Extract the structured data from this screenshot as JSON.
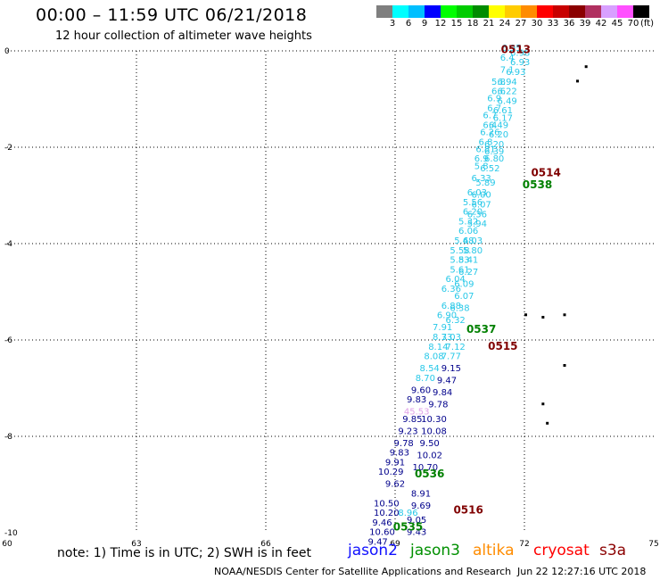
{
  "header": {
    "title": "00:00 – 11:59 UTC 06/21/2018",
    "subtitle": "12 hour collection of altimeter wave heights"
  },
  "colorbar": {
    "colors": [
      "#7f7f7f",
      "#00ffff",
      "#00bfff",
      "#0000ff",
      "#00ff00",
      "#00cc00",
      "#008c00",
      "#ffff00",
      "#ffcc00",
      "#ff8c00",
      "#ff0000",
      "#c80000",
      "#8b0000",
      "#b03060",
      "#d8a0ff",
      "#ff50ff",
      "#000000"
    ],
    "labels": [
      "3",
      "6",
      "9",
      "12",
      "15",
      "18",
      "21",
      "24",
      "27",
      "30",
      "33",
      "36",
      "39",
      "42",
      "45",
      "70"
    ],
    "unit": "(ft)"
  },
  "axes": {
    "x_ticks": [
      "60",
      "63",
      "66",
      "69",
      "72",
      "75"
    ],
    "y_ticks": [
      "0",
      "-2",
      "-4",
      "-6",
      "-8",
      "-10"
    ]
  },
  "map_data": {
    "x_range": [
      60,
      75
    ],
    "y_range": [
      -10,
      0
    ],
    "passes": [
      {
        "label": "0513",
        "satellite": "cryosat",
        "lon": 71.8,
        "lat": -0.05
      },
      {
        "label": "0514",
        "satellite": "cryosat",
        "lon": 72.5,
        "lat": -2.6
      },
      {
        "label": "0538",
        "satellite": "jason3",
        "lon": 72.3,
        "lat": -2.85
      },
      {
        "label": "0537",
        "satellite": "jason3",
        "lon": 71.0,
        "lat": -5.85
      },
      {
        "label": "0515",
        "satellite": "cryosat",
        "lon": 71.5,
        "lat": -6.2
      },
      {
        "label": "0536",
        "satellite": "jason3",
        "lon": 69.8,
        "lat": -8.85
      },
      {
        "label": "0516",
        "satellite": "cryosat",
        "lon": 70.7,
        "lat": -9.6
      },
      {
        "label": "0535",
        "satellite": "jason3",
        "lon": 69.3,
        "lat": -9.95
      }
    ],
    "tracks": [
      {
        "satellite": "s3a",
        "color": "#28c8e8",
        "points": [
          {
            "lon": 71.7,
            "lat": 0.0,
            "v": "6.95"
          },
          {
            "lon": 71.9,
            "lat": -0.1,
            "v": "6.98"
          },
          {
            "lon": 71.6,
            "lat": -0.2,
            "v": "6.4"
          },
          {
            "lon": 71.9,
            "lat": -0.3,
            "v": "6.93"
          },
          {
            "lon": 71.6,
            "lat": -0.45,
            "v": "7.1"
          },
          {
            "lon": 71.8,
            "lat": -0.5,
            "v": "6.93"
          },
          {
            "lon": 71.4,
            "lat": -0.7,
            "v": "5.8"
          },
          {
            "lon": 71.6,
            "lat": -0.7,
            "v": "6.94"
          },
          {
            "lon": 71.4,
            "lat": -0.9,
            "v": "6.6"
          },
          {
            "lon": 71.6,
            "lat": -0.9,
            "v": "6.22"
          },
          {
            "lon": 71.3,
            "lat": -1.05,
            "v": "6.9"
          },
          {
            "lon": 71.6,
            "lat": -1.1,
            "v": "6.49"
          },
          {
            "lon": 71.3,
            "lat": -1.25,
            "v": "6.7"
          },
          {
            "lon": 71.5,
            "lat": -1.3,
            "v": "6.61"
          },
          {
            "lon": 71.2,
            "lat": -1.4,
            "v": "6.7"
          },
          {
            "lon": 71.5,
            "lat": -1.45,
            "v": "6.17"
          },
          {
            "lon": 71.2,
            "lat": -1.6,
            "v": "6.4"
          },
          {
            "lon": 71.4,
            "lat": -1.6,
            "v": "6.49"
          },
          {
            "lon": 71.2,
            "lat": -1.75,
            "v": "6.26"
          },
          {
            "lon": 71.4,
            "lat": -1.8,
            "v": "6.20"
          },
          {
            "lon": 71.1,
            "lat": -1.95,
            "v": "6.8"
          },
          {
            "lon": 71.3,
            "lat": -2.0,
            "v": "6.20"
          },
          {
            "lon": 71.1,
            "lat": -2.1,
            "v": "6.81"
          },
          {
            "lon": 71.3,
            "lat": -2.15,
            "v": "6.39"
          },
          {
            "lon": 71.0,
            "lat": -2.3,
            "v": "6.9"
          },
          {
            "lon": 71.3,
            "lat": -2.3,
            "v": "6.80"
          },
          {
            "lon": 71.0,
            "lat": -2.45,
            "v": "5.8"
          },
          {
            "lon": 71.2,
            "lat": -2.5,
            "v": "6.52"
          },
          {
            "lon": 71.0,
            "lat": -2.7,
            "v": "6.33"
          },
          {
            "lon": 71.1,
            "lat": -2.8,
            "v": "5.89"
          },
          {
            "lon": 70.9,
            "lat": -3.0,
            "v": "6.03"
          },
          {
            "lon": 71.0,
            "lat": -3.05,
            "v": "6.00"
          },
          {
            "lon": 70.8,
            "lat": -3.2,
            "v": "5.56"
          },
          {
            "lon": 71.0,
            "lat": -3.25,
            "v": "6.07"
          },
          {
            "lon": 70.8,
            "lat": -3.4,
            "v": "6.20"
          },
          {
            "lon": 70.9,
            "lat": -3.45,
            "v": "6.36"
          },
          {
            "lon": 70.7,
            "lat": -3.6,
            "v": "5.32"
          },
          {
            "lon": 70.9,
            "lat": -3.65,
            "v": "5.94"
          },
          {
            "lon": 70.7,
            "lat": -3.8,
            "v": "6.06"
          },
          {
            "lon": 70.6,
            "lat": -4.0,
            "v": "5.48"
          },
          {
            "lon": 70.8,
            "lat": -4.0,
            "v": "6.03"
          },
          {
            "lon": 70.5,
            "lat": -4.2,
            "v": "5.58"
          },
          {
            "lon": 70.8,
            "lat": -4.2,
            "v": "5.80"
          },
          {
            "lon": 70.5,
            "lat": -4.4,
            "v": "5.83"
          },
          {
            "lon": 70.7,
            "lat": -4.4,
            "v": "5.41"
          },
          {
            "lon": 70.5,
            "lat": -4.6,
            "v": "5.61"
          },
          {
            "lon": 70.7,
            "lat": -4.65,
            "v": "6.27"
          },
          {
            "lon": 70.4,
            "lat": -4.8,
            "v": "6.04"
          },
          {
            "lon": 70.6,
            "lat": -4.9,
            "v": "6.09"
          },
          {
            "lon": 70.3,
            "lat": -5.0,
            "v": "6.36"
          },
          {
            "lon": 70.6,
            "lat": -5.15,
            "v": "6.07"
          },
          {
            "lon": 70.3,
            "lat": -5.35,
            "v": "6.88"
          },
          {
            "lon": 70.5,
            "lat": -5.4,
            "v": "6.38"
          },
          {
            "lon": 70.2,
            "lat": -5.55,
            "v": "6.90"
          },
          {
            "lon": 70.4,
            "lat": -5.65,
            "v": "6.32"
          },
          {
            "lon": 70.1,
            "lat": -5.8,
            "v": "7.91"
          },
          {
            "lon": 70.1,
            "lat": -6.0,
            "v": "8.33"
          },
          {
            "lon": 70.3,
            "lat": -6.0,
            "v": "7.03"
          },
          {
            "lon": 70.0,
            "lat": -6.2,
            "v": "8.14"
          },
          {
            "lon": 70.4,
            "lat": -6.2,
            "v": "7.12"
          },
          {
            "lon": 69.9,
            "lat": -6.4,
            "v": "8.08"
          },
          {
            "lon": 70.3,
            "lat": -6.4,
            "v": "7.77"
          },
          {
            "lon": 69.8,
            "lat": -6.65,
            "v": "8.54"
          },
          {
            "lon": 69.7,
            "lat": -6.85,
            "v": "8.70"
          },
          {
            "lon": 69.3,
            "lat": -9.65,
            "v": "8.96"
          }
        ]
      },
      {
        "satellite": "jason2",
        "color": "#00008b",
        "points": [
          {
            "lon": 70.3,
            "lat": -6.65,
            "v": "9.15"
          },
          {
            "lon": 70.2,
            "lat": -6.9,
            "v": "9.47"
          },
          {
            "lon": 69.6,
            "lat": -7.1,
            "v": "9.60"
          },
          {
            "lon": 70.1,
            "lat": -7.15,
            "v": "9.84"
          },
          {
            "lon": 69.5,
            "lat": -7.3,
            "v": "9.83"
          },
          {
            "lon": 70.0,
            "lat": -7.4,
            "v": "9.78"
          },
          {
            "lon": 69.4,
            "lat": -7.7,
            "v": "9.85"
          },
          {
            "lon": 69.9,
            "lat": -7.7,
            "v": "10.30"
          },
          {
            "lon": 69.3,
            "lat": -7.95,
            "v": "9.23"
          },
          {
            "lon": 69.9,
            "lat": -7.95,
            "v": "10.08"
          },
          {
            "lon": 69.2,
            "lat": -8.2,
            "v": "9.78"
          },
          {
            "lon": 69.8,
            "lat": -8.2,
            "v": "9.50"
          },
          {
            "lon": 69.1,
            "lat": -8.4,
            "v": "9.83"
          },
          {
            "lon": 69.8,
            "lat": -8.45,
            "v": "10.02"
          },
          {
            "lon": 69.0,
            "lat": -8.6,
            "v": "9.91"
          },
          {
            "lon": 69.7,
            "lat": -8.7,
            "v": "10.70"
          },
          {
            "lon": 68.9,
            "lat": -8.8,
            "v": "10.29"
          },
          {
            "lon": 69.0,
            "lat": -9.05,
            "v": "9.62"
          },
          {
            "lon": 69.6,
            "lat": -9.25,
            "v": "8.91"
          },
          {
            "lon": 68.8,
            "lat": -9.45,
            "v": "10.50"
          },
          {
            "lon": 69.6,
            "lat": -9.5,
            "v": "9.69"
          },
          {
            "lon": 68.8,
            "lat": -9.65,
            "v": "10.20"
          },
          {
            "lon": 69.5,
            "lat": -9.8,
            "v": "9.05"
          },
          {
            "lon": 68.7,
            "lat": -9.85,
            "v": "9.46"
          },
          {
            "lon": 68.7,
            "lat": -10.05,
            "v": "10.60"
          },
          {
            "lon": 69.5,
            "lat": -10.05,
            "v": "9.43"
          },
          {
            "lon": 68.6,
            "lat": -10.25,
            "v": "9.47"
          }
        ]
      },
      {
        "satellite": "anomaly",
        "color": "#e0a0e8",
        "points": [
          {
            "lon": 69.5,
            "lat": -7.55,
            "v": "45.53"
          }
        ]
      }
    ],
    "land": [
      {
        "lon": 73.4,
        "lat": -0.3
      },
      {
        "lon": 73.2,
        "lat": -0.6
      },
      {
        "lon": 72.0,
        "lat": -5.45
      },
      {
        "lon": 72.4,
        "lat": -5.5
      },
      {
        "lon": 72.9,
        "lat": -5.45
      },
      {
        "lon": 72.9,
        "lat": -6.5
      },
      {
        "lon": 72.4,
        "lat": -7.3
      },
      {
        "lon": 72.5,
        "lat": -7.7
      }
    ]
  },
  "footer": {
    "note": "note: 1) Time is in UTC; 2) SWH is in feet",
    "legend": [
      {
        "label": "jason2",
        "color": "#1010ff"
      },
      {
        "label": "jason3",
        "color": "#009000"
      },
      {
        "label": "altika",
        "color": "#ff8c00"
      },
      {
        "label": "cryosat",
        "color": "#ff0000"
      },
      {
        "label": "s3a",
        "color": "#8b0000"
      }
    ],
    "credit": "NOAA/NESDIS Center for Satellite Applications and Research",
    "timestamp": "Jun 22 12:27:16 UTC 2018"
  }
}
